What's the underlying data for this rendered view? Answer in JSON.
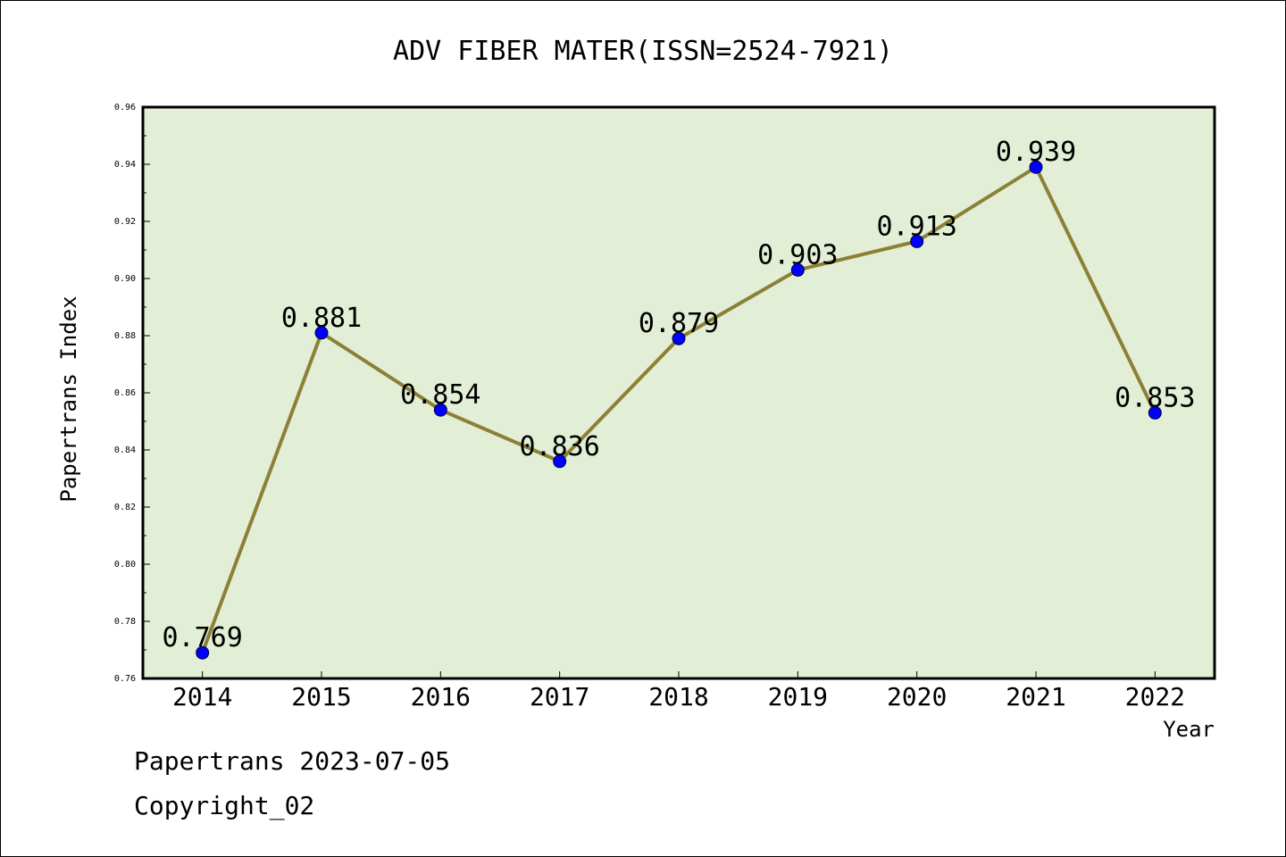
{
  "chart_data": {
    "type": "line",
    "title": "ADV FIBER MATER(ISSN=2524-7921)",
    "xlabel": "Year",
    "ylabel": "Papertrans Index",
    "categories": [
      "2014",
      "2015",
      "2016",
      "2017",
      "2018",
      "2019",
      "2020",
      "2021",
      "2022"
    ],
    "values": [
      0.769,
      0.881,
      0.854,
      0.836,
      0.879,
      0.903,
      0.913,
      0.939,
      0.853
    ],
    "value_labels": [
      "0.769",
      "0.881",
      "0.854",
      "0.836",
      "0.879",
      "0.903",
      "0.913",
      "0.939",
      "0.853"
    ],
    "ylim": [
      0.76,
      0.96
    ],
    "yticks": [
      "0.76",
      "0.78",
      "0.80",
      "0.82",
      "0.84",
      "0.86",
      "0.88",
      "0.90",
      "0.92",
      "0.94",
      "0.96"
    ],
    "grid": false,
    "colors": {
      "line": "#8b8035",
      "marker": "#0000ff",
      "plot_background": "#e2efd6",
      "axes": "#000000"
    }
  },
  "footer": {
    "line1": "Papertrans 2023-07-05",
    "line2": "Copyright_02"
  }
}
